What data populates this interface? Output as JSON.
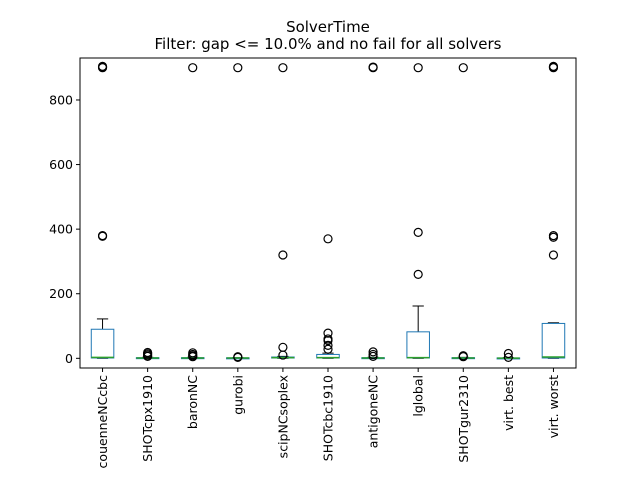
{
  "chart_data": {
    "type": "box",
    "title": "SolverTime",
    "subtitle": "Filter: gap <= 10.0% and no fail for all solvers",
    "xlabel": "",
    "ylabel": "",
    "ylim": [
      -30,
      930
    ],
    "yticks": [
      0,
      200,
      400,
      600,
      800
    ],
    "grid": false,
    "legend": "none",
    "colors": {
      "box": "#1f77b4",
      "median": "#2ca02c",
      "whisker": "#000000",
      "flier": "#000000"
    },
    "categories": [
      "couenneNCcbc",
      "SHOTcpx1910",
      "baronNC",
      "gurobi",
      "scipNCsoplex",
      "SHOTcbc1910",
      "antigoneNC",
      "lglobal",
      "SHOTgur2310",
      "virt. best",
      "virt. worst"
    ],
    "boxes": [
      {
        "name": "couenneNCcbc",
        "whislo": 0,
        "q1": 1,
        "median": 3,
        "q3": 90,
        "whishi": 122,
        "fliers": [
          380,
          378,
          900,
          902,
          904
        ]
      },
      {
        "name": "SHOTcpx1910",
        "whislo": 0,
        "q1": 0.5,
        "median": 1,
        "q3": 2,
        "whishi": 3,
        "fliers": [
          6,
          10,
          14,
          18
        ]
      },
      {
        "name": "baronNC",
        "whislo": 0,
        "q1": 0.5,
        "median": 1,
        "q3": 2,
        "whishi": 3,
        "fliers": [
          5,
          8,
          12,
          17,
          900
        ]
      },
      {
        "name": "gurobi",
        "whislo": 0,
        "q1": 0.3,
        "median": 0.8,
        "q3": 1.5,
        "whishi": 2,
        "fliers": [
          3,
          5,
          900
        ]
      },
      {
        "name": "scipNCsoplex",
        "whislo": 0,
        "q1": 1,
        "median": 2,
        "q3": 4,
        "whishi": 6,
        "fliers": [
          10,
          34,
          320,
          900
        ]
      },
      {
        "name": "SHOTcbc1910",
        "whislo": 0,
        "q1": 1,
        "median": 2,
        "q3": 12,
        "whishi": 16,
        "fliers": [
          28,
          40,
          55,
          60,
          78,
          370
        ]
      },
      {
        "name": "antigoneNC",
        "whislo": 0,
        "q1": 0.5,
        "median": 1,
        "q3": 2,
        "whishi": 3,
        "fliers": [
          6,
          12,
          20,
          900,
          902
        ]
      },
      {
        "name": "lglobal",
        "whislo": 0,
        "q1": 1,
        "median": 2,
        "q3": 82,
        "whishi": 162,
        "fliers": [
          260,
          390,
          900
        ]
      },
      {
        "name": "SHOTgur2310",
        "whislo": 0,
        "q1": 0.5,
        "median": 1,
        "q3": 2,
        "whishi": 3,
        "fliers": [
          5,
          8,
          900
        ]
      },
      {
        "name": "virt. best",
        "whislo": 0,
        "q1": 0.3,
        "median": 0.7,
        "q3": 1.2,
        "whishi": 2,
        "fliers": [
          3,
          15
        ]
      },
      {
        "name": "virt. worst",
        "whislo": 0,
        "q1": 1,
        "median": 4,
        "q3": 108,
        "whishi": 110,
        "fliers": [
          320,
          375,
          380,
          900,
          902,
          904
        ]
      }
    ]
  }
}
